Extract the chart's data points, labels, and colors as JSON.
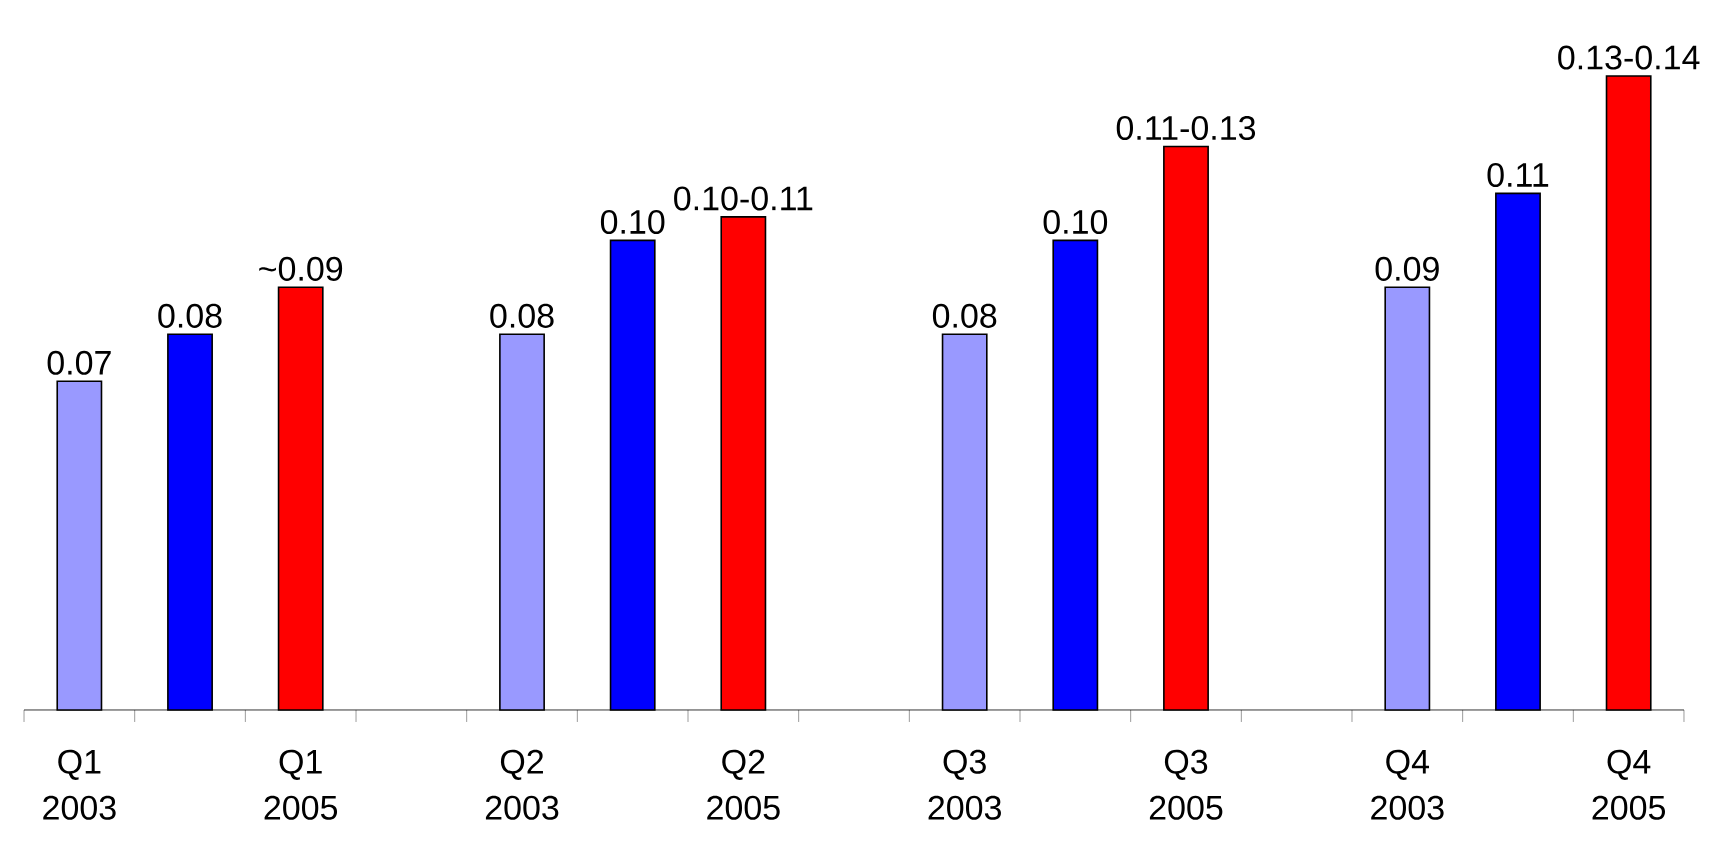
{
  "chart_data": {
    "type": "bar",
    "categories": [
      "Q1 2003",
      null,
      "Q1 2005",
      null,
      "Q2 2003",
      null,
      "Q2 2005",
      null,
      "Q3 2003",
      null,
      "Q3 2005",
      null,
      "Q4 2003",
      null,
      "Q4 2005"
    ],
    "values": [
      0.07,
      0.08,
      0.09,
      null,
      0.08,
      0.1,
      0.105,
      null,
      0.08,
      0.1,
      0.12,
      null,
      0.09,
      0.11,
      0.135
    ],
    "value_labels": [
      "0.07",
      "0.08",
      "~0.09",
      null,
      "0.08",
      "0.10",
      "0.10-0.11",
      null,
      "0.08",
      "0.10",
      "0.11-0.13",
      null,
      "0.09",
      "0.11",
      "0.13-0.14"
    ],
    "colors": [
      "#9999ff",
      "#0000ff",
      "#ff0000",
      null,
      "#9999ff",
      "#0000ff",
      "#ff0000",
      null,
      "#9999ff",
      "#0000ff",
      "#ff0000",
      null,
      "#9999ff",
      "#0000ff",
      "#ff0000"
    ],
    "orientation": "vertical"
  }
}
